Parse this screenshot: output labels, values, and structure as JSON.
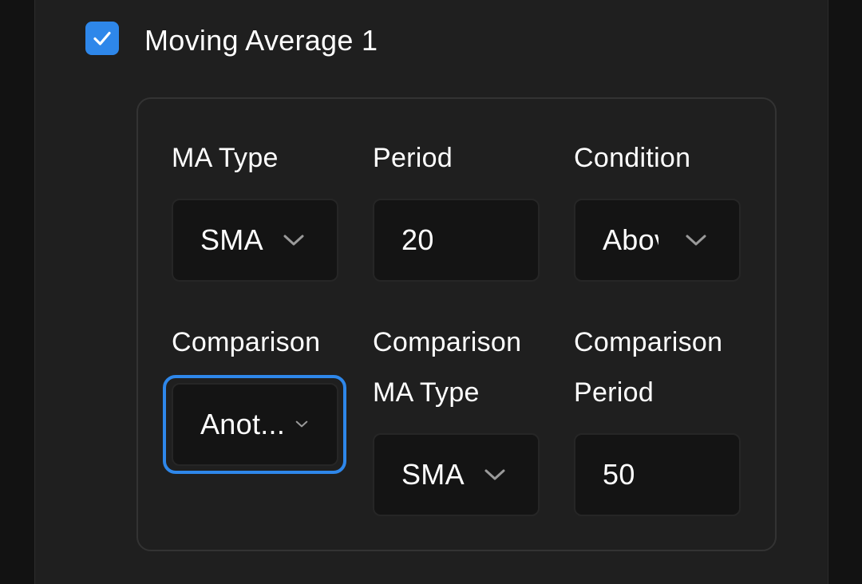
{
  "colors": {
    "accent": "#2e87ea",
    "panel": "#1f1f1f",
    "field": "#141414",
    "background": "#121212"
  },
  "section": {
    "title": "Moving Average 1",
    "enabled": true
  },
  "labels": {
    "ma_type": "MA Type",
    "period": "Period",
    "condition": "Condition",
    "comparison": "Comparison",
    "comparison_ma_type": "Comparison\nMA Type",
    "comparison_period": "Comparison\nPeriod"
  },
  "values": {
    "ma_type": "SMA",
    "period": "20",
    "condition": "Above",
    "comparison": "Anot...",
    "comparison_ma_type": "SMA",
    "comparison_period": "50"
  },
  "icons": {
    "checkbox": "check-icon",
    "dropdown": "chevron-down-icon"
  }
}
